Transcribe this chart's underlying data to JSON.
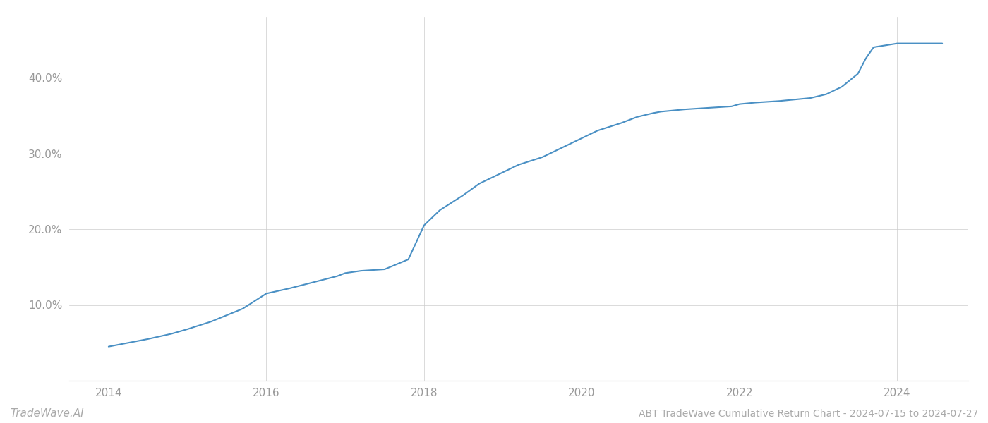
{
  "title": "ABT TradeWave Cumulative Return Chart - 2024-07-15 to 2024-07-27",
  "watermark": "TradeWave.AI",
  "line_color": "#4a90c4",
  "background_color": "#ffffff",
  "grid_color": "#cccccc",
  "xlim": [
    2013.5,
    2024.9
  ],
  "ylim": [
    0,
    48
  ],
  "yticks": [
    10.0,
    20.0,
    30.0,
    40.0
  ],
  "xticks": [
    2014,
    2016,
    2018,
    2020,
    2022,
    2024
  ],
  "title_fontsize": 10,
  "tick_fontsize": 11,
  "watermark_fontsize": 11,
  "line_width": 1.5,
  "x_data": [
    2014.0,
    2014.2,
    2014.5,
    2014.8,
    2015.0,
    2015.3,
    2015.7,
    2016.0,
    2016.3,
    2016.6,
    2016.9,
    2017.0,
    2017.2,
    2017.5,
    2017.8,
    2018.0,
    2018.2,
    2018.5,
    2018.7,
    2018.9,
    2019.0,
    2019.2,
    2019.5,
    2019.7,
    2019.9,
    2020.0,
    2020.2,
    2020.5,
    2020.7,
    2020.9,
    2021.0,
    2021.3,
    2021.6,
    2021.9,
    2022.0,
    2022.2,
    2022.5,
    2022.7,
    2022.9,
    2023.1,
    2023.3,
    2023.5,
    2023.6,
    2023.7,
    2024.0,
    2024.3,
    2024.57
  ],
  "y_data": [
    4.5,
    4.9,
    5.5,
    6.2,
    6.8,
    7.8,
    9.5,
    11.5,
    12.2,
    13.0,
    13.8,
    14.2,
    14.5,
    14.7,
    16.0,
    20.5,
    22.5,
    24.5,
    26.0,
    27.0,
    27.5,
    28.5,
    29.5,
    30.5,
    31.5,
    32.0,
    33.0,
    34.0,
    34.8,
    35.3,
    35.5,
    35.8,
    36.0,
    36.2,
    36.5,
    36.7,
    36.9,
    37.1,
    37.3,
    37.8,
    38.8,
    40.5,
    42.5,
    44.0,
    44.5,
    44.5,
    44.5
  ]
}
